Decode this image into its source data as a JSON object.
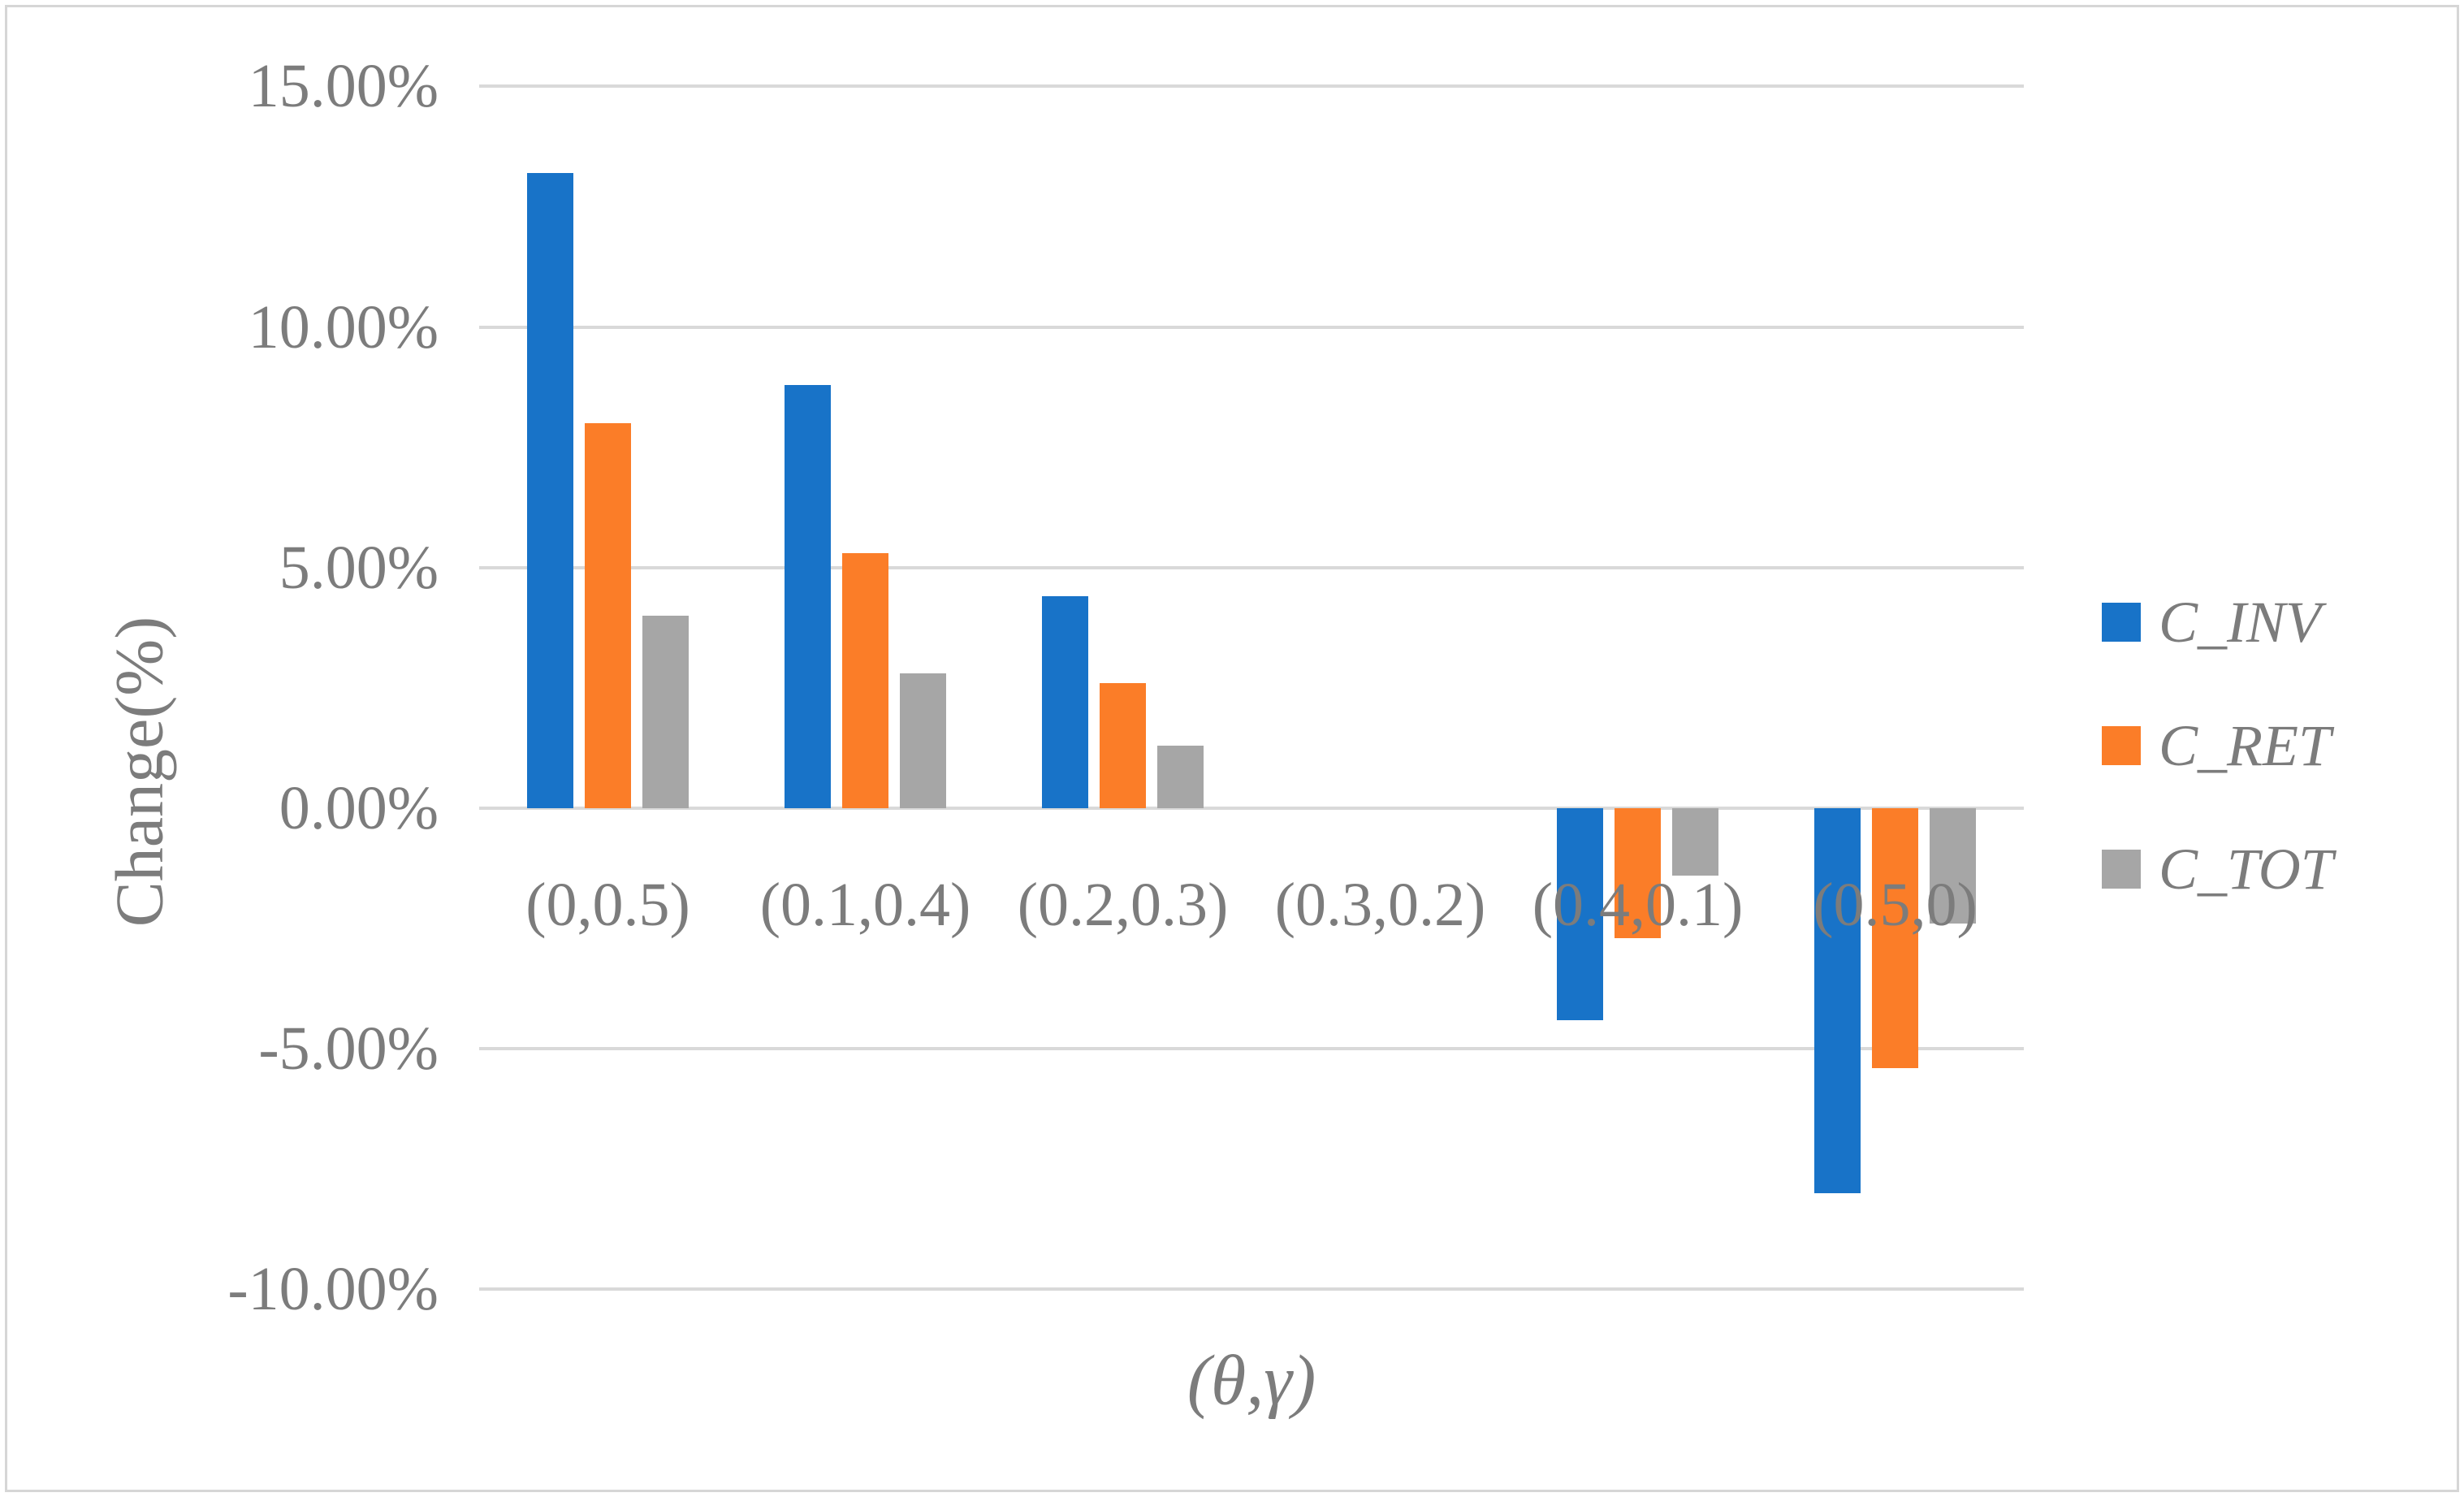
{
  "figure": {
    "background_color": "#FFFFFF",
    "border_color": "#D6D6D6"
  },
  "chart_data": {
    "type": "bar",
    "title": "",
    "categories": [
      "(0,0.5)",
      "(0.1,0.4)",
      "(0.2,0.3)",
      "(0.3,0.2)",
      "(0.4,0.1)",
      "(0.5,0)"
    ],
    "series": [
      {
        "name": "C_INV",
        "color": "#1873C8",
        "values": [
          13.2,
          8.8,
          4.4,
          0,
          -4.4,
          -8.0
        ]
      },
      {
        "name": "C_RET",
        "color": "#FB7D28",
        "values": [
          8.0,
          5.3,
          2.6,
          0,
          -2.7,
          -5.4
        ]
      },
      {
        "name": "C_TOT",
        "color": "#A6A6A6",
        "values": [
          4.0,
          2.8,
          1.3,
          0,
          -1.4,
          -2.4
        ]
      }
    ],
    "xlabel": "(θ,γ)",
    "ylabel": "Change(%)",
    "ylim": [
      -10,
      15
    ],
    "yticks": [
      15,
      10,
      5,
      0,
      -5,
      -10
    ],
    "ytick_labels": [
      "15.00%",
      "10.00%",
      "5.00%",
      "0.00%",
      "-5.00%",
      "-10.00%"
    ],
    "grid": true,
    "gridline_color": "#D9D9D9",
    "text_color": "#7C7C7C",
    "legend_position": "right",
    "legend_entries": [
      "C_INV",
      "C_RET",
      "C_TOT"
    ]
  }
}
